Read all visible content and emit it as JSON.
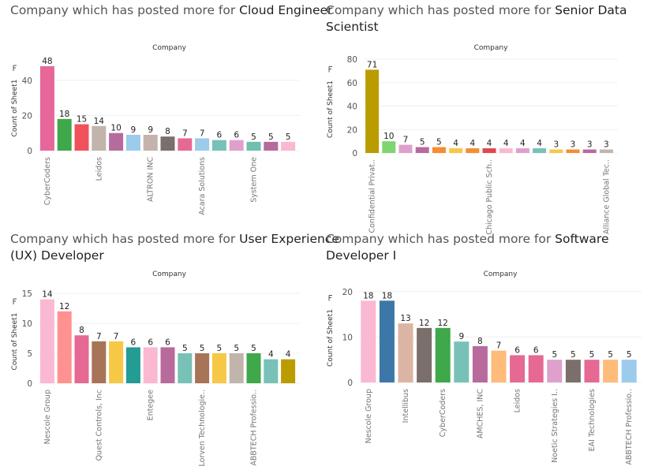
{
  "chart_data": [
    {
      "type": "bar",
      "title_prefix": "Company which has posted more for ",
      "title_role": "Cloud Engineer",
      "header": "Company",
      "ylabel": "Count of Sheet1",
      "ylim": [
        0,
        52
      ],
      "yticks": [
        0,
        20,
        40
      ],
      "categories": [
        "CyberCoders",
        "",
        "",
        "Leidos",
        "",
        "",
        "ALTRON INC",
        "",
        "",
        "Acara Solutions",
        "",
        "",
        "System One",
        "",
        ""
      ],
      "values": [
        48,
        18,
        15,
        14,
        10,
        9,
        9,
        8,
        7,
        7,
        6,
        6,
        5,
        5,
        5
      ],
      "colors": [
        "#e7679a",
        "#3ea84a",
        "#f0525c",
        "#c1b5ab",
        "#b56c9d",
        "#9ccbeb",
        "#c5b3ab",
        "#7a6f6b",
        "#e56993",
        "#9ccbeb",
        "#78c1b6",
        "#dfa0cd",
        "#6fbfae",
        "#b86a9c",
        "#fbb8d2"
      ],
      "label_every": 3
    },
    {
      "type": "bar",
      "title_prefix": "Company which has posted more for ",
      "title_role": "Senior Data Scientist",
      "header": "Company",
      "ylabel": "Count of Sheet1",
      "ylim": [
        0,
        80
      ],
      "yticks": [
        0,
        20,
        40,
        60,
        80
      ],
      "categories": [
        "Confidential Privat..",
        "",
        "",
        "",
        "",
        "",
        "",
        "Chicago Public Sch..",
        "",
        "",
        "",
        "",
        "",
        "",
        "Alliance Global Tec.."
      ],
      "values": [
        71,
        10,
        7,
        5,
        5,
        4,
        4,
        4,
        4,
        4,
        4,
        3,
        3,
        3,
        3
      ],
      "colors": [
        "#bb9c00",
        "#7ed66f",
        "#dfa0cd",
        "#b86a9c",
        "#f68d2e",
        "#f7c845",
        "#f68d2e",
        "#e2474e",
        "#fbb8d2",
        "#dfa0cd",
        "#78c1b6",
        "#f7c845",
        "#f68d2e",
        "#b86a9c",
        "#c1b5ab"
      ],
      "label_every": 7
    },
    {
      "type": "bar",
      "title_prefix": "Company which has posted more for ",
      "title_role": "User Experience (UX) Developer",
      "header": "Company",
      "ylabel": "Count of Sheet1",
      "ylim": [
        0,
        15
      ],
      "yticks": [
        0,
        5,
        10,
        15
      ],
      "categories": [
        "Nescole Group",
        "",
        "",
        "Quest Controls, Inc",
        "",
        "",
        "Entegee",
        "",
        "",
        "Lorven Technologie..",
        "",
        "",
        "ABBTECH Professio..",
        "",
        ""
      ],
      "values": [
        14,
        12,
        8,
        7,
        7,
        6,
        6,
        6,
        5,
        5,
        5,
        5,
        5,
        4,
        4
      ],
      "colors": [
        "#fbb8d2",
        "#ff9290",
        "#e56993",
        "#a87458",
        "#f7c845",
        "#239c93",
        "#fbb8d2",
        "#b86a9c",
        "#78c1b6",
        "#a87458",
        "#f7c845",
        "#c1b5ab",
        "#3ea84a",
        "#78c1b6",
        "#bb9c00"
      ],
      "label_every": 3
    },
    {
      "type": "bar",
      "title_prefix": "Company which has posted more for ",
      "title_role": "Software Developer I",
      "header": "Company",
      "ylabel": "Count of Sheet1",
      "ylim": [
        0,
        21
      ],
      "yticks": [
        0,
        10,
        20
      ],
      "categories": [
        "Nescole Group",
        "",
        "Intellibus",
        "",
        "CyberCoders",
        "",
        "AMCHES, INC",
        "",
        "Leidos",
        "",
        "Noetic Strategies I..",
        "",
        "EAI Technologies",
        "",
        "ABBTECH Professio.."
      ],
      "values": [
        18,
        18,
        13,
        12,
        12,
        9,
        8,
        7,
        6,
        6,
        5,
        5,
        5,
        5,
        5
      ],
      "colors": [
        "#fbb8d2",
        "#3d77a8",
        "#dcb4a4",
        "#7a6f6b",
        "#3ea84a",
        "#78c1b6",
        "#b86a9c",
        "#ffbb7a",
        "#e56993",
        "#e56993",
        "#dfa0cd",
        "#7a6f6b",
        "#e56993",
        "#ffbb7a",
        "#9ccbeb"
      ],
      "label_every": 2
    }
  ]
}
